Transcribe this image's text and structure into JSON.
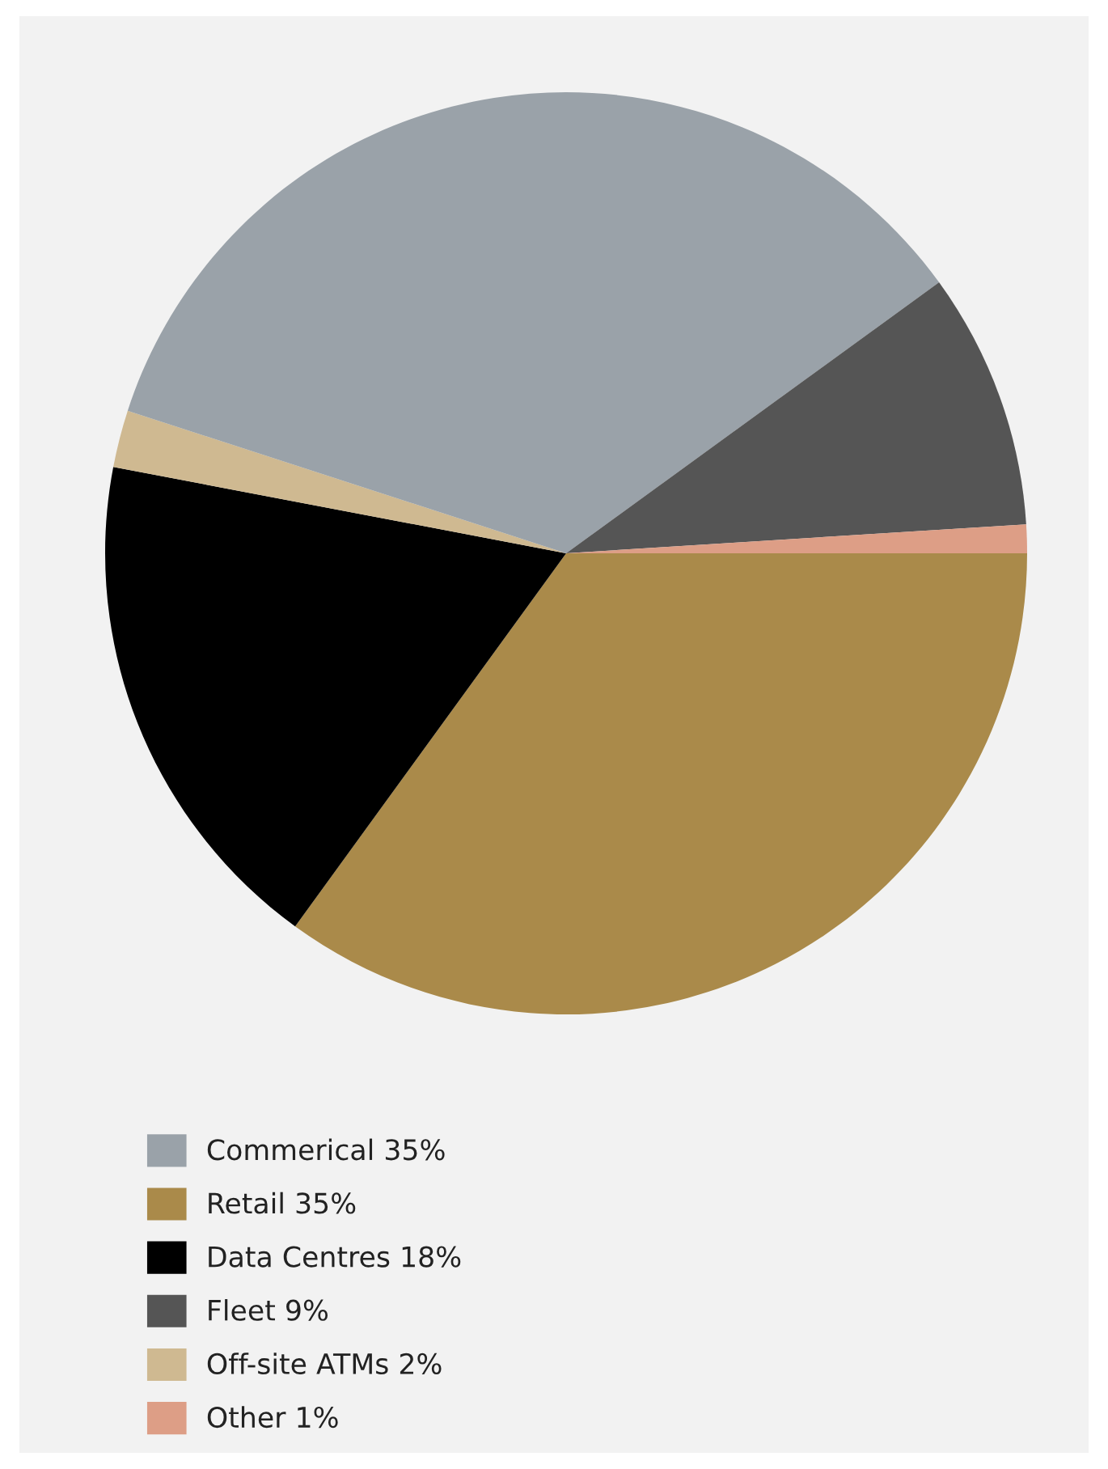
{
  "chart_data": {
    "type": "pie",
    "categories": [
      "Commerical 35%",
      "Retail 35%",
      "Data Centres 18%",
      "Fleet 9%",
      "Off-site ATMs 2%",
      "Other 1%"
    ],
    "values": [
      35,
      35,
      18,
      9,
      2,
      1
    ],
    "colors": [
      "#9aa2a9",
      "#aa8a4a",
      "#000000",
      "#555555",
      "#cfb991",
      "#dd9e86"
    ],
    "legend": "bottom left"
  }
}
